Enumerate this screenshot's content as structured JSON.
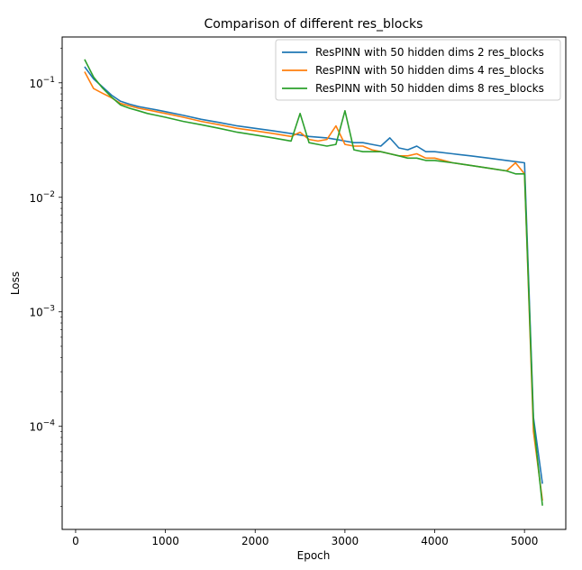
{
  "chart_data": {
    "type": "line",
    "title": "Comparison of different res_blocks",
    "xlabel": "Epoch",
    "ylabel": "Loss",
    "xscale": "linear",
    "yscale": "log",
    "xlim": [
      -150,
      5460
    ],
    "ylim_log10": [
      -4.9,
      -0.6
    ],
    "xticks": [
      0,
      1000,
      2000,
      3000,
      4000,
      5000
    ],
    "xtick_labels": [
      "0",
      "1000",
      "2000",
      "3000",
      "4000",
      "5000"
    ],
    "yticks_log10": [
      -1,
      -2,
      -3,
      -4
    ],
    "ytick_labels": [
      {
        "base": "10",
        "exp": "−1"
      },
      {
        "base": "10",
        "exp": "−2"
      },
      {
        "base": "10",
        "exp": "−3"
      },
      {
        "base": "10",
        "exp": "−4"
      }
    ],
    "grid": false,
    "legend_position": "upper-right",
    "series": [
      {
        "name": "ResPINN with 50 hidden dims 2 res_blocks",
        "color": "#1f77b4",
        "x": [
          100,
          200,
          300,
          400,
          500,
          600,
          700,
          800,
          900,
          1000,
          1200,
          1400,
          1600,
          1800,
          2000,
          2200,
          2400,
          2500,
          2600,
          2800,
          2900,
          3000,
          3100,
          3200,
          3300,
          3400,
          3500,
          3600,
          3700,
          3800,
          3900,
          4000,
          4200,
          4400,
          4600,
          4800,
          5000,
          5100,
          5200
        ],
        "y": [
          0.138,
          0.108,
          0.092,
          0.078,
          0.069,
          0.065,
          0.062,
          0.06,
          0.058,
          0.056,
          0.052,
          0.048,
          0.045,
          0.042,
          0.04,
          0.038,
          0.036,
          0.035,
          0.034,
          0.033,
          0.032,
          0.031,
          0.03,
          0.03,
          0.029,
          0.028,
          0.033,
          0.027,
          0.026,
          0.028,
          0.025,
          0.025,
          0.024,
          0.023,
          0.022,
          0.021,
          0.02,
          0.00012,
          3.15e-05
        ]
      },
      {
        "name": "ResPINN with 50 hidden dims 4 res_blocks",
        "color": "#ff7f0e",
        "x": [
          100,
          200,
          300,
          400,
          500,
          600,
          700,
          800,
          900,
          1000,
          1200,
          1400,
          1600,
          1800,
          2000,
          2200,
          2400,
          2500,
          2600,
          2700,
          2800,
          2900,
          3000,
          3100,
          3200,
          3300,
          3400,
          3500,
          3600,
          3700,
          3800,
          3900,
          4000,
          4200,
          4400,
          4600,
          4800,
          4900,
          5000,
          5100,
          5200
        ],
        "y": [
          0.125,
          0.089,
          0.081,
          0.074,
          0.066,
          0.063,
          0.06,
          0.058,
          0.056,
          0.054,
          0.05,
          0.046,
          0.043,
          0.04,
          0.038,
          0.036,
          0.034,
          0.037,
          0.032,
          0.031,
          0.032,
          0.042,
          0.029,
          0.028,
          0.028,
          0.026,
          0.025,
          0.024,
          0.023,
          0.023,
          0.024,
          0.022,
          0.022,
          0.02,
          0.019,
          0.018,
          0.017,
          0.02,
          0.016,
          9e-05,
          2.25e-05
        ]
      },
      {
        "name": "ResPINN with 50 hidden dims 8 res_blocks",
        "color": "#2ca02c",
        "x": [
          100,
          200,
          300,
          400,
          500,
          600,
          700,
          800,
          900,
          1000,
          1200,
          1400,
          1600,
          1800,
          2000,
          2200,
          2400,
          2500,
          2600,
          2700,
          2800,
          2900,
          3000,
          3100,
          3200,
          3300,
          3400,
          3500,
          3600,
          3700,
          3800,
          3900,
          4000,
          4200,
          4400,
          4600,
          4800,
          4900,
          5000,
          5100,
          5200
        ],
        "y": [
          0.16,
          0.112,
          0.09,
          0.075,
          0.064,
          0.06,
          0.057,
          0.054,
          0.052,
          0.05,
          0.046,
          0.043,
          0.04,
          0.037,
          0.035,
          0.033,
          0.031,
          0.054,
          0.03,
          0.029,
          0.028,
          0.029,
          0.057,
          0.026,
          0.025,
          0.025,
          0.025,
          0.024,
          0.023,
          0.022,
          0.022,
          0.021,
          0.021,
          0.02,
          0.019,
          0.018,
          0.017,
          0.016,
          0.016,
          0.00011,
          2.03e-05
        ]
      }
    ]
  }
}
